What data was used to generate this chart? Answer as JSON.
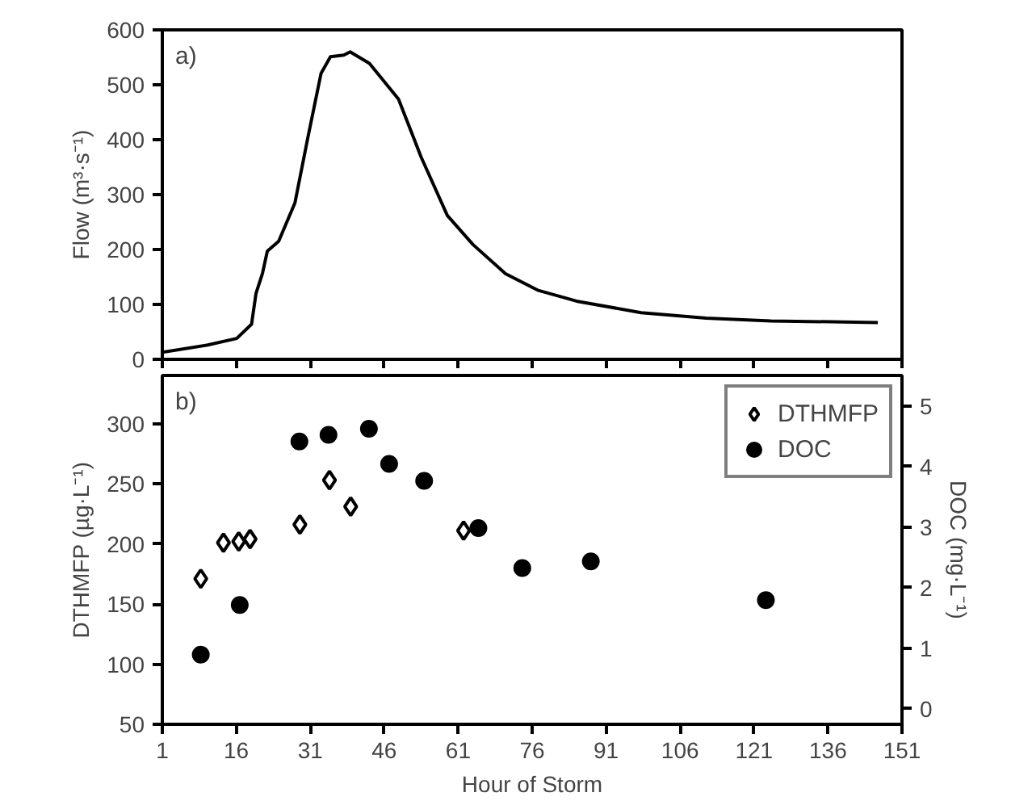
{
  "chart_data": [
    {
      "type": "line",
      "ylabel": "Flow (m³·s⁻¹)",
      "annotations": [
        "a)"
      ],
      "x": [
        1,
        10.2,
        16.1,
        19.1,
        20.0,
        21.3,
        22.3,
        24.6,
        27.9,
        30.5,
        33.2,
        35.1,
        37.8,
        39.1,
        43.0,
        48.9,
        53.5,
        58.8,
        64.0,
        70.6,
        77.1,
        85.0,
        98.1,
        111.3,
        124.4,
        146.1
      ],
      "series": [
        {
          "color": "#000000",
          "values": [
            13,
            26,
            38,
            64,
            120,
            156,
            197,
            215,
            285,
            403,
            521,
            551,
            554,
            560,
            539,
            474,
            368,
            262,
            209,
            156,
            126,
            106,
            85,
            75,
            70,
            67
          ]
        }
      ],
      "xlim": [
        1,
        151
      ],
      "xticks": [
        1,
        16,
        31,
        46,
        61,
        76,
        91,
        106,
        121,
        136,
        151
      ],
      "ylim": [
        0,
        600
      ],
      "yticks": [
        0,
        100,
        200,
        300,
        400,
        500,
        600
      ],
      "tick_labels": "y",
      "grid": false,
      "legend": false,
      "marker": "none",
      "line_style": "solid"
    },
    {
      "type": "scatter",
      "xlabel": "Hour of Storm",
      "ylabel": "DTHMFP (µg·L⁻¹)",
      "y2label": "DOC (mg·L⁻¹)",
      "annotations": [
        "b)"
      ],
      "series": [
        {
          "name": "DTHMFP",
          "color": "#000000",
          "marker": "diamond",
          "x": [
            8.8,
            13.4,
            16.5,
            18.8,
            28.9,
            34.9,
            39.2,
            62.1
          ],
          "values": [
            171,
            201,
            202,
            204,
            216,
            253,
            231,
            211
          ]
        },
        {
          "name": "DOC",
          "color": "#000000",
          "marker": "circle",
          "axis": "y2",
          "x": [
            8.8,
            16.7,
            28.8,
            34.7,
            42.9,
            47.0,
            54.1,
            65.1,
            74.0,
            87.9,
            123.4
          ],
          "values": [
            0.89,
            1.71,
            4.41,
            4.52,
            4.62,
            4.04,
            3.76,
            2.98,
            2.32,
            2.43,
            1.79
          ]
        }
      ],
      "xlim": [
        1,
        151
      ],
      "xticks": [
        1,
        16,
        31,
        46,
        61,
        76,
        91,
        106,
        121,
        136,
        151
      ],
      "ylim": [
        50,
        340
      ],
      "yticks": [
        50,
        100,
        150,
        200,
        250,
        300
      ],
      "y2lim": [
        -0.26,
        5.5
      ],
      "y2ticks": [
        0,
        1,
        2,
        3,
        4,
        5
      ],
      "grid": false,
      "legend": "top right"
    }
  ]
}
